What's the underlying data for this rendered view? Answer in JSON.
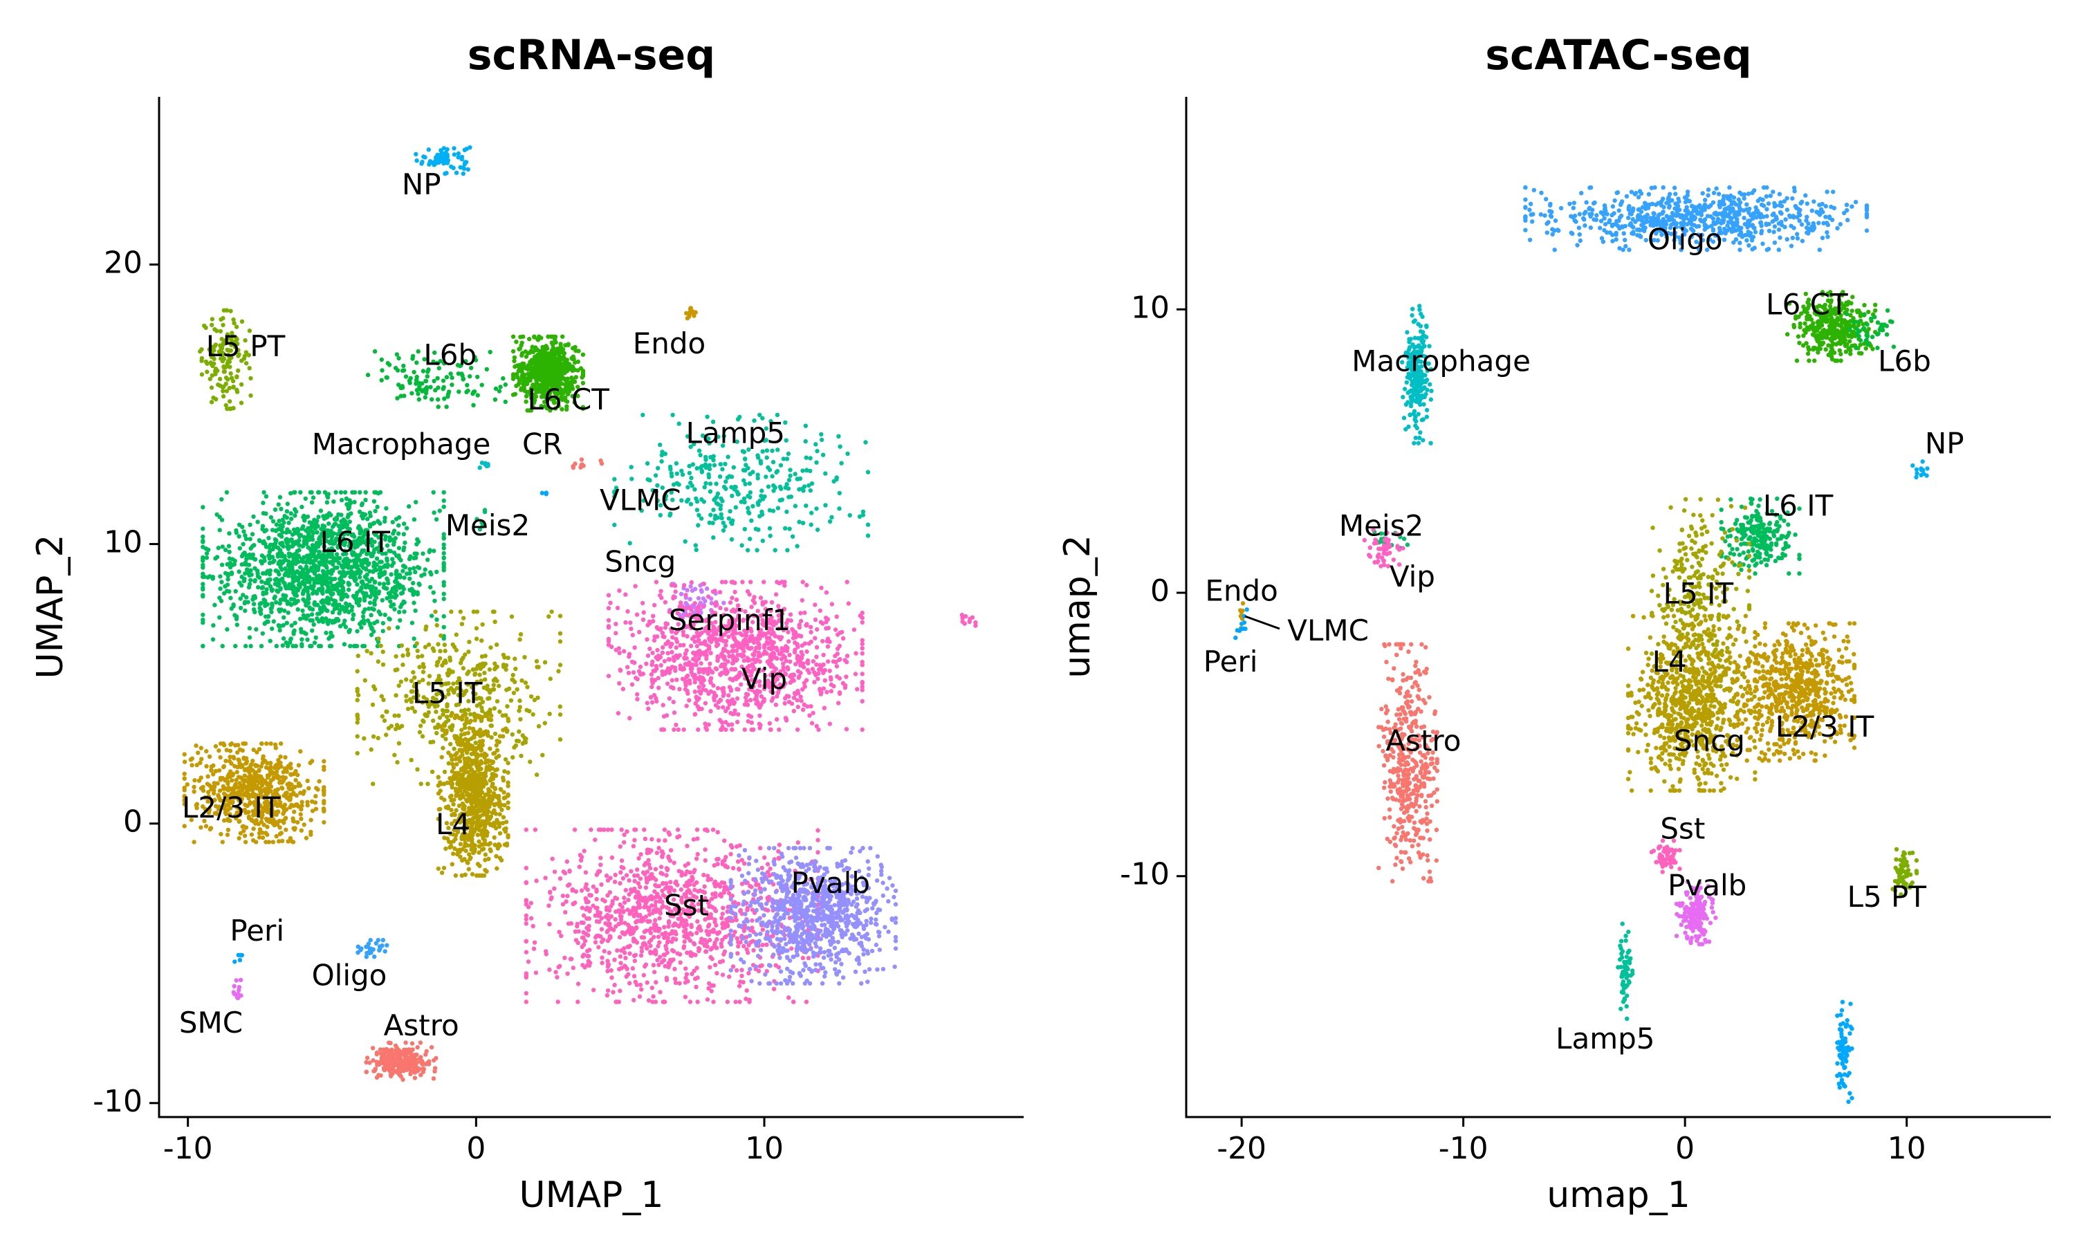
{
  "chart_data": [
    {
      "type": "scatter",
      "title": "scRNA-seq",
      "xlabel": "UMAP_1",
      "ylabel": "UMAP_2",
      "xlim": [
        -11,
        19
      ],
      "ylim": [
        -10.5,
        26
      ],
      "xticks": [
        -10,
        0,
        10
      ],
      "yticks": [
        -10,
        0,
        10,
        20
      ],
      "grid": false,
      "legend": "none",
      "clusters": [
        {
          "label": "NP",
          "color": "#00B0F6",
          "x": -1.1,
          "y": 23.8,
          "sx": 0.45,
          "sy": 0.25,
          "n": 70
        },
        {
          "label": "L5 PT",
          "color": "#7CAE00",
          "x": -8.7,
          "y": 16.6,
          "sx": 0.4,
          "sy": 0.8,
          "n": 140
        },
        {
          "label": "L6b",
          "color": "#00BA38",
          "x": -1.4,
          "y": 15.9,
          "sx": 1.1,
          "sy": 0.45,
          "n": 120
        },
        {
          "label": "L6 CT",
          "color": "#2CB200",
          "x": 2.5,
          "y": 16.1,
          "sx": 0.55,
          "sy": 0.6,
          "n": 600
        },
        {
          "label": "Endo",
          "color": "#CD9600",
          "x": 7.4,
          "y": 18.3,
          "sx": 0.15,
          "sy": 0.1,
          "n": 12
        },
        {
          "label": "Macrophage",
          "color": "#00BFC4",
          "x": 0.3,
          "y": 12.8,
          "sx": 0.12,
          "sy": 0.08,
          "n": 8
        },
        {
          "label": "CR",
          "color": "#F8766D",
          "x": 3.8,
          "y": 12.8,
          "sx": 0.35,
          "sy": 0.1,
          "n": 10
        },
        {
          "label": "Lamp5",
          "color": "#00C19A",
          "x": 9.2,
          "y": 12.2,
          "sx": 2.0,
          "sy": 1.1,
          "n": 320
        },
        {
          "label": "VLMC",
          "color": "#00A9FF",
          "x": 2.4,
          "y": 11.9,
          "sx": 0.08,
          "sy": 0.08,
          "n": 3
        },
        {
          "label": "Meis2",
          "color": "#00BE67",
          "x": 0.2,
          "y": 10.8,
          "sx": 0.1,
          "sy": 0.2,
          "n": 6
        },
        {
          "label": "L6 IT",
          "color": "#00BD5C",
          "x": -5.3,
          "y": 9.1,
          "sx": 1.9,
          "sy": 1.25,
          "n": 1500
        },
        {
          "label": "Sncg",
          "color": "#C77CFF",
          "x": 7.6,
          "y": 7.8,
          "sx": 0.45,
          "sy": 0.35,
          "n": 60
        },
        {
          "label": "Serpinf1",
          "color": "#FF61C3",
          "x": 17.0,
          "y": 7.3,
          "sx": 0.15,
          "sy": 0.1,
          "n": 10
        },
        {
          "label": "Vip",
          "color": "#FF61C3",
          "x": 9.0,
          "y": 6.0,
          "sx": 2.0,
          "sy": 1.2,
          "n": 1100
        },
        {
          "label": "L5 IT",
          "color": "#A3A500",
          "x": -0.6,
          "y": 4.5,
          "sx": 1.6,
          "sy": 1.4,
          "n": 450
        },
        {
          "label": "L4",
          "color": "#B79F00",
          "x": -0.1,
          "y": 1.0,
          "sx": 0.55,
          "sy": 1.3,
          "n": 700
        },
        {
          "label": "L2/3 IT",
          "color": "#C49A00",
          "x": -7.7,
          "y": 1.1,
          "sx": 1.1,
          "sy": 0.8,
          "n": 650
        },
        {
          "label": "Sst",
          "color": "#FF62BC",
          "x": 6.8,
          "y": -3.3,
          "sx": 2.3,
          "sy": 1.4,
          "n": 1100
        },
        {
          "label": "Pvalb",
          "color": "#9590FF",
          "x": 11.7,
          "y": -3.3,
          "sx": 1.3,
          "sy": 1.1,
          "n": 850
        },
        {
          "label": "Peri",
          "color": "#00A5FF",
          "x": -8.2,
          "y": -4.7,
          "sx": 0.08,
          "sy": 0.15,
          "n": 6
        },
        {
          "label": "Oligo",
          "color": "#35A2FF",
          "x": -3.6,
          "y": -4.5,
          "sx": 0.3,
          "sy": 0.15,
          "n": 30
        },
        {
          "label": "SMC",
          "color": "#E76BF3",
          "x": -8.3,
          "y": -6.0,
          "sx": 0.1,
          "sy": 0.25,
          "n": 12
        },
        {
          "label": "Astro",
          "color": "#F8766D",
          "x": -2.6,
          "y": -8.5,
          "sx": 0.55,
          "sy": 0.3,
          "n": 250
        }
      ],
      "labels": [
        {
          "text": "NP",
          "x": -1.9,
          "y": 22.8
        },
        {
          "text": "L5 PT",
          "x": -8.0,
          "y": 17.0
        },
        {
          "text": "L6b",
          "x": -0.9,
          "y": 16.7
        },
        {
          "text": "L6 CT",
          "x": 3.2,
          "y": 15.1
        },
        {
          "text": "Endo",
          "x": 6.7,
          "y": 17.1
        },
        {
          "text": "Macrophage",
          "x": -2.6,
          "y": 13.5
        },
        {
          "text": "CR",
          "x": 2.3,
          "y": 13.5
        },
        {
          "text": "Lamp5",
          "x": 9.0,
          "y": 13.9
        },
        {
          "text": "VLMC",
          "x": 5.7,
          "y": 11.5
        },
        {
          "text": "Meis2",
          "x": 0.4,
          "y": 10.6
        },
        {
          "text": "L6 IT",
          "x": -4.2,
          "y": 10.0
        },
        {
          "text": "Sncg",
          "x": 5.7,
          "y": 9.3
        },
        {
          "text": "Serpinf1",
          "x": 8.8,
          "y": 7.2
        },
        {
          "text": "Vip",
          "x": 10.0,
          "y": 5.1
        },
        {
          "text": "L5 IT",
          "x": -1.0,
          "y": 4.6
        },
        {
          "text": "L4",
          "x": -0.8,
          "y": -0.1
        },
        {
          "text": "L2/3 IT",
          "x": -8.5,
          "y": 0.5
        },
        {
          "text": "Sst",
          "x": 7.3,
          "y": -3.0
        },
        {
          "text": "Pvalb",
          "x": 12.3,
          "y": -2.2
        },
        {
          "text": "Peri",
          "x": -7.6,
          "y": -3.9
        },
        {
          "text": "Oligo",
          "x": -4.4,
          "y": -5.5
        },
        {
          "text": "SMC",
          "x": -9.2,
          "y": -7.2
        },
        {
          "text": "Astro",
          "x": -1.9,
          "y": -7.3
        }
      ]
    },
    {
      "type": "scatter",
      "title": "scATAC-seq",
      "xlabel": "umap_1",
      "ylabel": "umap_2",
      "xlim": [
        -22.5,
        16.5
      ],
      "ylim": [
        -18.5,
        17.5
      ],
      "xticks": [
        -20,
        -10,
        0,
        10
      ],
      "yticks": [
        -10,
        0,
        10
      ],
      "grid": false,
      "legend": "none",
      "clusters": [
        {
          "label": "Oligo",
          "color": "#35A2FF",
          "x": 0.5,
          "y": 13.2,
          "sx": 3.5,
          "sy": 0.5,
          "n": 700
        },
        {
          "label": "L6 CT",
          "color": "#2CB200",
          "x": 6.6,
          "y": 9.4,
          "sx": 0.9,
          "sy": 0.55,
          "n": 350
        },
        {
          "label": "L6b",
          "color": "#00BA38",
          "x": 8.3,
          "y": 9.3,
          "sx": 0.6,
          "sy": 0.3,
          "n": 40
        },
        {
          "label": "Macrophage",
          "color": "#00BFC4",
          "x": -12.1,
          "y": 7.7,
          "sx": 0.3,
          "sy": 1.1,
          "n": 220
        },
        {
          "label": "NP",
          "color": "#00B0F6",
          "x": 10.6,
          "y": 4.3,
          "sx": 0.15,
          "sy": 0.15,
          "n": 12
        },
        {
          "label": "Meis2",
          "color": "#00BE67",
          "x": -13.4,
          "y": 1.9,
          "sx": 0.4,
          "sy": 0.15,
          "n": 15
        },
        {
          "label": "Vip",
          "color": "#FF61C3",
          "x": -13.6,
          "y": 1.6,
          "sx": 0.4,
          "sy": 0.3,
          "n": 50
        },
        {
          "label": "L6 IT",
          "color": "#00BD5C",
          "x": 3.4,
          "y": 2.0,
          "sx": 0.8,
          "sy": 0.6,
          "n": 220
        },
        {
          "label": "L5 IT",
          "color": "#A3A500",
          "x": 0.7,
          "y": 0.0,
          "sx": 1.0,
          "sy": 1.5,
          "n": 260
        },
        {
          "label": "Endo",
          "color": "#CD9600",
          "x": -20.0,
          "y": -0.7,
          "sx": 0.1,
          "sy": 0.25,
          "n": 8
        },
        {
          "label": "VLMC",
          "color": "#00A9FF",
          "x": -19.9,
          "y": -0.9,
          "sx": 0.08,
          "sy": 0.2,
          "n": 5
        },
        {
          "label": "Peri",
          "color": "#00A5FF",
          "x": -20.1,
          "y": -1.3,
          "sx": 0.08,
          "sy": 0.2,
          "n": 5
        },
        {
          "label": "L4",
          "color": "#B79F00",
          "x": 0.3,
          "y": -3.9,
          "sx": 1.3,
          "sy": 1.4,
          "n": 800
        },
        {
          "label": "L2/3 IT",
          "color": "#C49A00",
          "x": 5.0,
          "y": -3.5,
          "sx": 1.2,
          "sy": 1.1,
          "n": 650
        },
        {
          "label": "Astro",
          "color": "#F8766D",
          "x": -12.5,
          "y": -6.0,
          "sx": 0.6,
          "sy": 1.9,
          "n": 420
        },
        {
          "label": "Sst",
          "color": "#FF62BC",
          "x": -0.9,
          "y": -9.3,
          "sx": 0.3,
          "sy": 0.25,
          "n": 60
        },
        {
          "label": "Pvalb",
          "color": "#E76BF3",
          "x": 0.5,
          "y": -11.3,
          "sx": 0.4,
          "sy": 0.5,
          "n": 160
        },
        {
          "label": "L5 PT",
          "color": "#7CAE00",
          "x": 9.9,
          "y": -9.8,
          "sx": 0.25,
          "sy": 0.4,
          "n": 60
        },
        {
          "label": "Lamp5",
          "color": "#00C19A",
          "x": -2.7,
          "y": -13.3,
          "sx": 0.15,
          "sy": 0.8,
          "n": 60
        },
        {
          "label": "Serpinf1",
          "color": "#00A9FF",
          "x": 7.2,
          "y": -16.2,
          "sx": 0.15,
          "sy": 0.8,
          "n": 80
        }
      ],
      "labels": [
        {
          "text": "Oligo",
          "x": 0.0,
          "y": 12.4
        },
        {
          "text": "L6 CT",
          "x": 5.5,
          "y": 10.1
        },
        {
          "text": "L6b",
          "x": 9.9,
          "y": 8.1
        },
        {
          "text": "Macrophage",
          "x": -11.0,
          "y": 8.1
        },
        {
          "text": "NP",
          "x": 11.7,
          "y": 5.2
        },
        {
          "text": "Meis2",
          "x": -13.7,
          "y": 2.3
        },
        {
          "text": "Vip",
          "x": -12.3,
          "y": 0.5
        },
        {
          "text": "L6 IT",
          "x": 5.1,
          "y": 3.0
        },
        {
          "text": "L5 IT",
          "x": 0.6,
          "y": -0.1
        },
        {
          "text": "Endo",
          "x": -20.0,
          "y": 0.0
        },
        {
          "text": "VLMC",
          "x": -16.1,
          "y": -1.4
        },
        {
          "text": "Peri",
          "x": -20.5,
          "y": -2.5
        },
        {
          "text": "L4",
          "x": -0.7,
          "y": -2.5
        },
        {
          "text": "Sncg",
          "x": 1.1,
          "y": -5.3
        },
        {
          "text": "L2/3 IT",
          "x": 6.3,
          "y": -4.8
        },
        {
          "text": "Astro",
          "x": -11.8,
          "y": -5.3
        },
        {
          "text": "Sst",
          "x": -0.1,
          "y": -8.4
        },
        {
          "text": "Pvalb",
          "x": 1.0,
          "y": -10.4
        },
        {
          "text": "L5 PT",
          "x": 9.1,
          "y": -10.8
        },
        {
          "text": "Lamp5",
          "x": -3.6,
          "y": -15.8
        }
      ]
    }
  ]
}
